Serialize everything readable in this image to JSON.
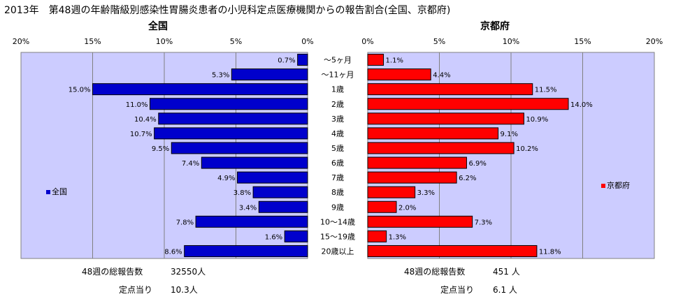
{
  "title": "2013年　第48週の年齢階級別感染性胃腸炎患者の小児科定点医療機関からの報告割合(全国、京都府)",
  "colors": {
    "national": "#0000cc",
    "kyoto": "#ff0000",
    "plot_bg": "#ccccff",
    "kyoto_bg": "#ccffff"
  },
  "chart_data": {
    "type": "bar",
    "orientation": "horizontal-butterfly",
    "categories": [
      "～5ヶ月",
      "～11ヶ月",
      "1歳",
      "2歳",
      "3歳",
      "4歳",
      "5歳",
      "6歳",
      "7歳",
      "8歳",
      "9歳",
      "10～14歳",
      "15～19歳",
      "20歳以上"
    ],
    "xlim": [
      0,
      20
    ],
    "ticks": [
      0,
      5,
      10,
      15,
      20
    ],
    "tick_labels_left": [
      "0%",
      "5%",
      "10%",
      "15%",
      "20%"
    ],
    "tick_labels_right": [
      "0%",
      "5%",
      "10%",
      "15%",
      "20%"
    ],
    "grid": true,
    "series": [
      {
        "name": "全国",
        "side": "left",
        "color": "#0000cc",
        "values": [
          0.7,
          5.3,
          15.0,
          11.0,
          10.4,
          10.7,
          9.5,
          7.4,
          4.9,
          3.8,
          3.4,
          7.8,
          1.6,
          8.6
        ],
        "labels": [
          "0.7%",
          "5.3%",
          "15.0%",
          "11.0%",
          "10.4%",
          "10.7%",
          "9.5%",
          "7.4%",
          "4.9%",
          "3.8%",
          "3.4%",
          "7.8%",
          "1.6%",
          "8.6%"
        ]
      },
      {
        "name": "京都府",
        "side": "right",
        "color": "#ff0000",
        "values": [
          1.1,
          4.4,
          11.5,
          14.0,
          10.9,
          9.1,
          10.2,
          6.9,
          6.2,
          3.3,
          2.0,
          7.3,
          1.3,
          11.8
        ],
        "labels": [
          "1.1%",
          "4.4%",
          "11.5%",
          "14.0%",
          "10.9%",
          "9.1%",
          "10.2%",
          "6.9%",
          "6.2%",
          "3.3%",
          "2.0%",
          "7.3%",
          "1.3%",
          "11.8%"
        ]
      }
    ],
    "legend_placement": "inside-left / inside-right"
  },
  "panels": {
    "left_title": "全国",
    "right_title": "京都府"
  },
  "legend": {
    "national_label": "全国",
    "kyoto_label": "京都府"
  },
  "footer": {
    "national_total_label": "48週の総報告数",
    "national_total_value": "32550人",
    "national_per_label": "定点当り",
    "national_per_value": "10.3人",
    "kyoto_total_label": "48週の総報告数",
    "kyoto_total_value": "451 人",
    "kyoto_per_label": "定点当り",
    "kyoto_per_value": "6.1 人"
  }
}
